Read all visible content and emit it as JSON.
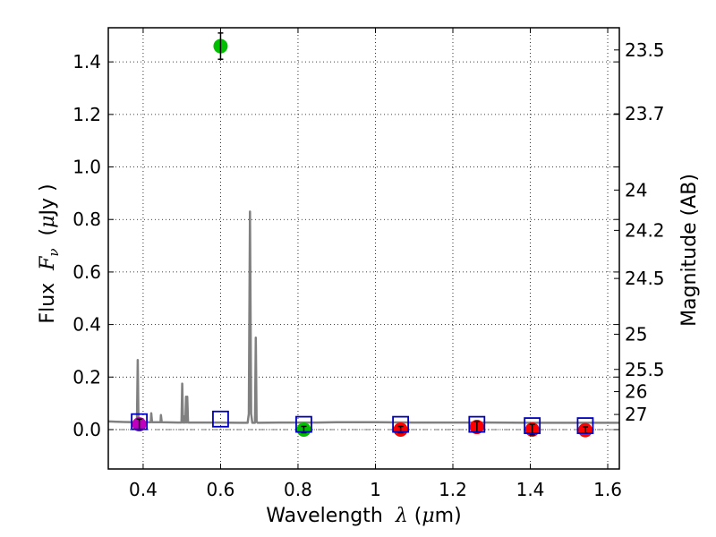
{
  "chart_data": {
    "type": "scatter",
    "xlabel": {
      "text": "Wavelength",
      "symbol": "λ",
      "units_open": "(",
      "units_mu": "μ",
      "units_rest": "m)"
    },
    "ylabel": {
      "text": "Flux",
      "symbol": "F",
      "subscript": "ν",
      "units_open": "(",
      "units_mu": "μ",
      "units_rest": "Jy )"
    },
    "ylabel_right": "Magnitude (AB)",
    "xlim": [
      0.31,
      1.63
    ],
    "ylim": [
      -0.15,
      1.53
    ],
    "x_ticks": [
      {
        "value": 0.4,
        "label": "0.4"
      },
      {
        "value": 0.6,
        "label": "0.6"
      },
      {
        "value": 0.8,
        "label": "0.8"
      },
      {
        "value": 1.0,
        "label": "1"
      },
      {
        "value": 1.2,
        "label": "1.2"
      },
      {
        "value": 1.4,
        "label": "1.4"
      },
      {
        "value": 1.6,
        "label": "1.6"
      }
    ],
    "y_ticks": [
      {
        "value": 0.0,
        "label": "0.0"
      },
      {
        "value": 0.2,
        "label": "0.2"
      },
      {
        "value": 0.4,
        "label": "0.4"
      },
      {
        "value": 0.6,
        "label": "0.6"
      },
      {
        "value": 0.8,
        "label": "0.8"
      },
      {
        "value": 1.0,
        "label": "1.0"
      },
      {
        "value": 1.2,
        "label": "1.2"
      },
      {
        "value": 1.4,
        "label": "1.4"
      }
    ],
    "mag_ticks": [
      "23.5",
      "23.7",
      "24",
      "24.2",
      "24.5",
      "25",
      "25.5",
      "26",
      "27"
    ],
    "grid": true,
    "template_spectrum": {
      "color": "#808080",
      "points": [
        [
          0.31,
          0.031
        ],
        [
          0.35,
          0.029
        ],
        [
          0.38,
          0.028
        ],
        [
          0.384,
          0.028
        ],
        [
          0.386,
          0.265
        ],
        [
          0.388,
          0.028
        ],
        [
          0.4,
          0.028
        ],
        [
          0.42,
          0.028
        ],
        [
          0.421,
          0.062
        ],
        [
          0.423,
          0.028
        ],
        [
          0.445,
          0.028
        ],
        [
          0.446,
          0.055
        ],
        [
          0.448,
          0.028
        ],
        [
          0.49,
          0.027
        ],
        [
          0.499,
          0.027
        ],
        [
          0.501,
          0.175
        ],
        [
          0.503,
          0.027
        ],
        [
          0.505,
          0.027
        ],
        [
          0.506,
          0.05
        ],
        [
          0.508,
          0.027
        ],
        [
          0.509,
          0.027
        ],
        [
          0.511,
          0.125
        ],
        [
          0.513,
          0.027
        ],
        [
          0.514,
          0.125
        ],
        [
          0.516,
          0.027
        ],
        [
          0.55,
          0.027
        ],
        [
          0.6,
          0.027
        ],
        [
          0.65,
          0.026
        ],
        [
          0.67,
          0.026
        ],
        [
          0.673,
          0.06
        ],
        [
          0.676,
          0.83
        ],
        [
          0.679,
          0.06
        ],
        [
          0.682,
          0.026
        ],
        [
          0.689,
          0.026
        ],
        [
          0.691,
          0.35
        ],
        [
          0.693,
          0.03
        ],
        [
          0.696,
          0.026
        ],
        [
          0.75,
          0.027
        ],
        [
          0.8,
          0.027
        ],
        [
          0.85,
          0.027
        ],
        [
          0.9,
          0.028
        ],
        [
          0.95,
          0.028
        ],
        [
          1.0,
          0.028
        ],
        [
          1.1,
          0.027
        ],
        [
          1.2,
          0.027
        ],
        [
          1.3,
          0.027
        ],
        [
          1.4,
          0.026
        ],
        [
          1.5,
          0.026
        ],
        [
          1.63,
          0.026
        ]
      ]
    },
    "series": [
      {
        "name": "magenta point",
        "color": "#bf00bf",
        "points": [
          {
            "x": 0.39,
            "y": 0.02,
            "err": 0.02
          }
        ]
      },
      {
        "name": "green points",
        "color": "#00bf00",
        "points": [
          {
            "x": 0.6,
            "y": 1.46,
            "err": 0.05
          },
          {
            "x": 0.815,
            "y": 0.0,
            "err": 0.012
          }
        ]
      },
      {
        "name": "red points",
        "color": "#ff0000",
        "points": [
          {
            "x": 1.065,
            "y": 0.0,
            "err": 0.012
          },
          {
            "x": 1.262,
            "y": 0.01,
            "err": 0.02
          },
          {
            "x": 1.405,
            "y": 0.0,
            "err": 0.02
          },
          {
            "x": 1.542,
            "y": -0.002,
            "err": 0.012
          }
        ]
      },
      {
        "name": "model photometry",
        "marker": "open-square",
        "color": "#0000bf",
        "points": [
          {
            "x": 0.39,
            "y": 0.03
          },
          {
            "x": 0.6,
            "y": 0.04
          },
          {
            "x": 0.815,
            "y": 0.02
          },
          {
            "x": 1.065,
            "y": 0.02
          },
          {
            "x": 1.262,
            "y": 0.02
          },
          {
            "x": 1.405,
            "y": 0.015
          },
          {
            "x": 1.542,
            "y": 0.015
          }
        ]
      }
    ],
    "zero_line": 0.0
  }
}
